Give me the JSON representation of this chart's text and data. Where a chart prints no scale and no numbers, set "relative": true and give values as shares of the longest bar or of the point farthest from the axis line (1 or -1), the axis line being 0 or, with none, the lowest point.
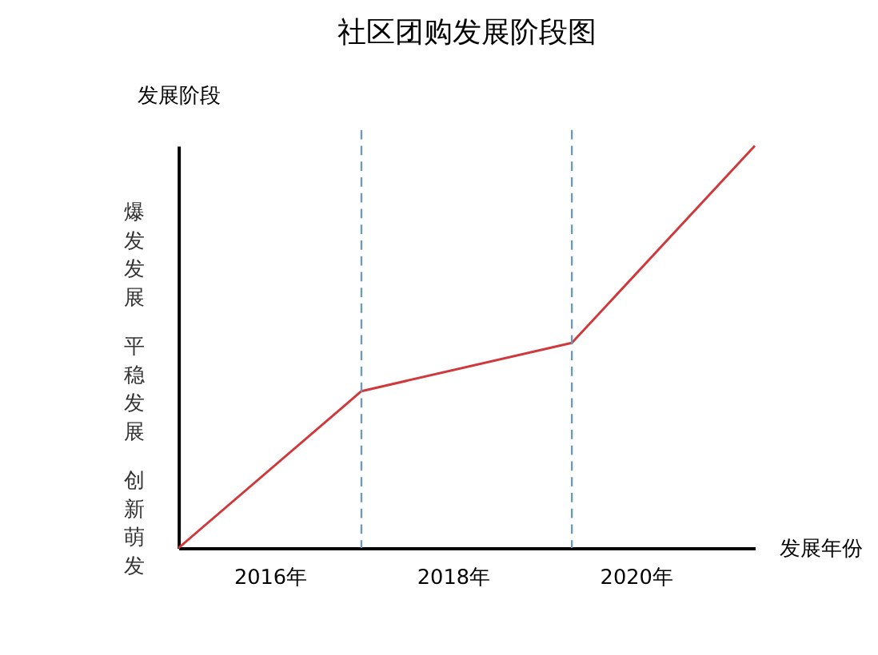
{
  "chart_data": {
    "type": "line",
    "title": "社区团购发展阶段图",
    "xlabel": "发展年份",
    "ylabel": "发展阶段",
    "x": [
      2015,
      2017,
      2019.3,
      2021.3
    ],
    "series": [
      {
        "color": "#d0393b",
        "values": [
          0,
          0.39,
          0.51,
          1
        ]
      }
    ],
    "relative": true,
    "xlim": [
      2015,
      2021.3
    ],
    "xticks": [
      {
        "value": 2016,
        "label": "2016年"
      },
      {
        "value": 2018,
        "label": "2018年"
      },
      {
        "value": 2020,
        "label": "2020年"
      }
    ],
    "ref_lines": [
      {
        "axis": "x",
        "value": 2017,
        "color": "#6f9ab5",
        "line_style": "dashed"
      },
      {
        "axis": "x",
        "value": 2019.3,
        "color": "#6f9ab5",
        "line_style": "dashed"
      }
    ],
    "annotations": [
      "爆发发展",
      "平稳发展",
      "创新萌发"
    ],
    "tick_labels": "x",
    "grid": false,
    "marker": "none",
    "line_style": "solid"
  }
}
